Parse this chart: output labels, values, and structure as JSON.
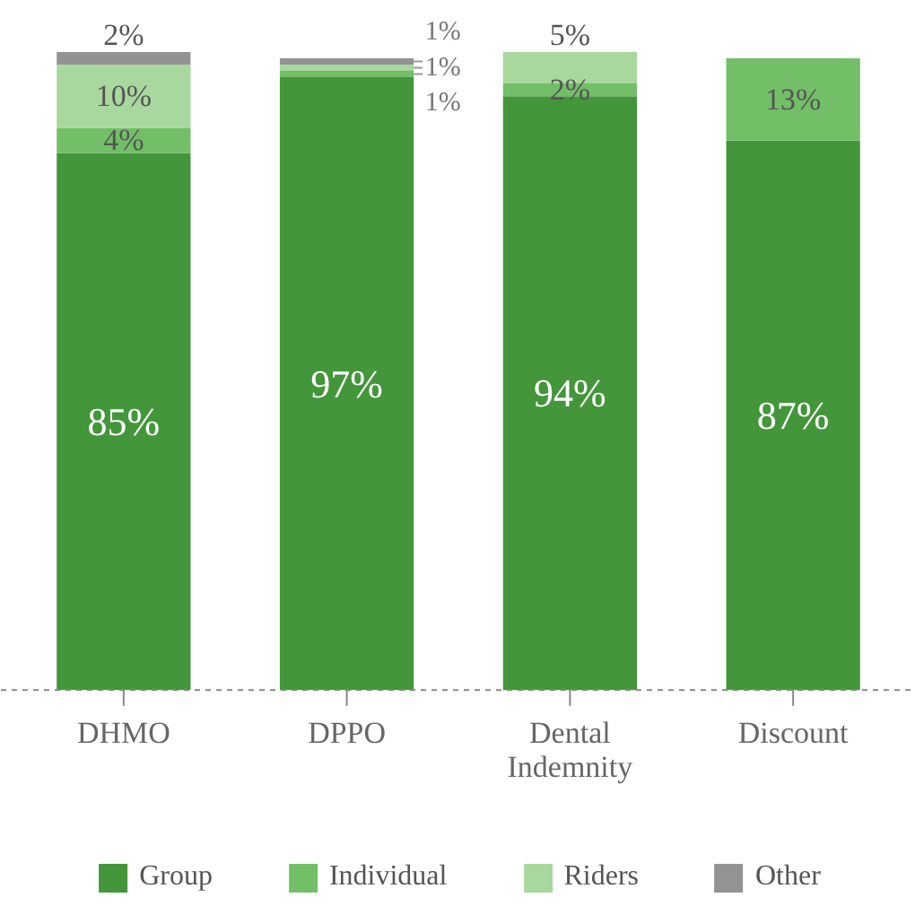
{
  "chart_data": {
    "type": "bar",
    "stacked": true,
    "legend": "bottom",
    "categories": [
      "DHMO",
      "DPPO",
      "Dental\nIndemnity",
      "Discount"
    ],
    "series": [
      {
        "name": "Group",
        "color": "#43963a",
        "values": [
          85,
          97,
          94,
          87
        ],
        "value_labels": [
          "85%",
          "97%",
          "94%",
          "87%"
        ]
      },
      {
        "name": "Individual",
        "color": "#72bf67",
        "values": [
          4,
          1,
          2,
          13
        ],
        "value_labels": [
          "4%",
          "1%",
          "2%",
          "13%"
        ]
      },
      {
        "name": "Riders",
        "color": "#a8d89e",
        "values": [
          10,
          1,
          5,
          null
        ],
        "value_labels": [
          "10%",
          "1%",
          "5%",
          null
        ]
      },
      {
        "name": "Other",
        "color": "#939393",
        "values": [
          2,
          1,
          null,
          null
        ],
        "value_labels": [
          "2%",
          "1%",
          null,
          null
        ]
      }
    ]
  }
}
